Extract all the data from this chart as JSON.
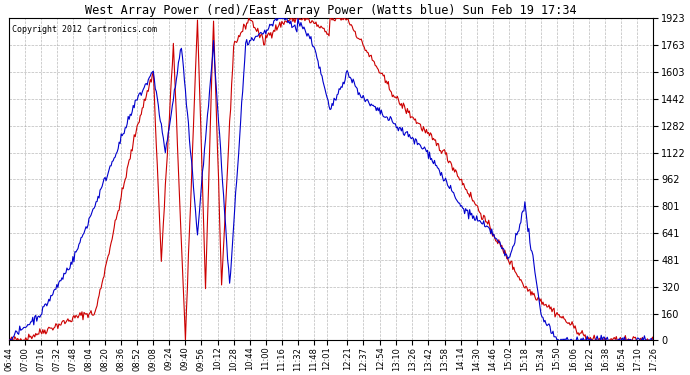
{
  "title": "West Array Power (red)/East Array Power (Watts blue) Sun Feb 19 17:34",
  "copyright": "Copyright 2012 Cartronics.com",
  "background_color": "#ffffff",
  "plot_bg_color": "#ffffff",
  "grid_color": "#aaaaaa",
  "yticks": [
    0.0,
    160.3,
    320.5,
    480.8,
    641.0,
    801.3,
    961.5,
    1121.8,
    1282.0,
    1442.3,
    1602.6,
    1762.8,
    1923.1
  ],
  "ymax": 1923.1,
  "xtick_labels": [
    "06:44",
    "07:00",
    "07:16",
    "07:32",
    "07:48",
    "08:04",
    "08:20",
    "08:36",
    "08:52",
    "09:08",
    "09:24",
    "09:40",
    "09:56",
    "10:12",
    "10:28",
    "10:44",
    "11:00",
    "11:16",
    "11:32",
    "11:48",
    "12:01",
    "12:21",
    "12:37",
    "12:54",
    "13:10",
    "13:26",
    "13:42",
    "13:58",
    "14:14",
    "14:30",
    "14:46",
    "15:02",
    "15:18",
    "15:34",
    "15:50",
    "16:06",
    "16:22",
    "16:38",
    "16:54",
    "17:10",
    "17:26"
  ],
  "line_red_color": "#cc0000",
  "line_blue_color": "#0000cc",
  "line_width": 0.8
}
